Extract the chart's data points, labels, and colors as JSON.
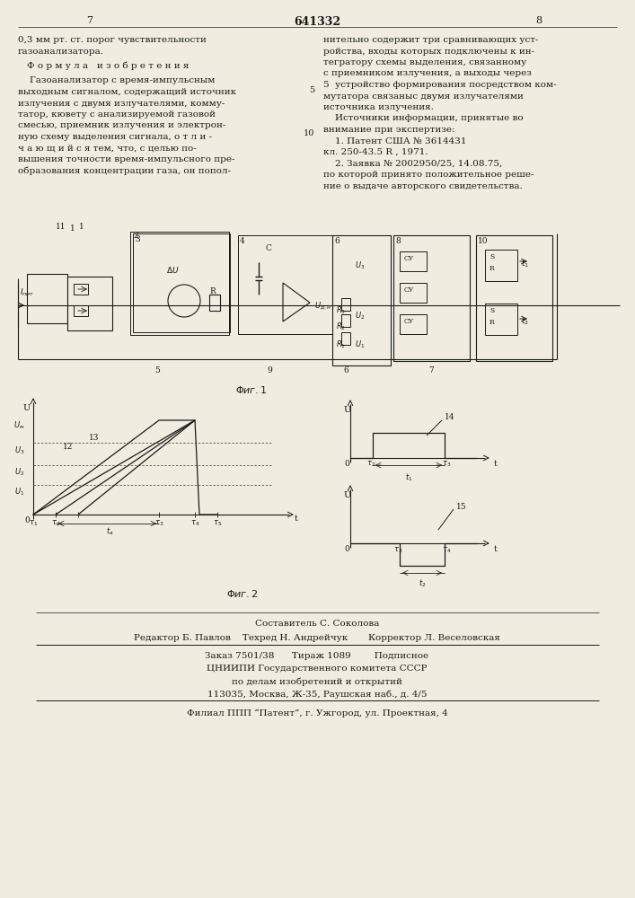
{
  "title_patent": "641332",
  "page_left": "7",
  "page_right": "8",
  "bg_color": "#f0ede0",
  "text_color": "#1a1a1a",
  "left_col_lines": [
    "0,3 мм рт. ст. порог чувствительности",
    "газоанализатора.",
    "",
    "Ф о р м у л а   и з о б р е т е н и я",
    "",
    "    Газоанализатор с время-импульсным",
    "выходным сигналом, содержащий источник",
    "излучения с двумя излучателями, комму-",
    "татор, кювету с анализируемой газовой",
    "смесью, приемник излучения и электрон-",
    "ную схему выделения сигнала, о т л и -",
    "ч а ю щ и й с я тем, что, с целью по-",
    "вышения точности время-импульсного пре-",
    "образования концентрации газа, он попол-"
  ],
  "right_col_lines": [
    "нительно содержит три сравнивающих уст-",
    "ройства, входы которых подключены к ин-",
    "тегратору схемы выделения, связанному",
    "с приемником излучения, а выходы через",
    "5  устройство формирования посредством ком-",
    "мутатора связаныс двумя излучателями",
    "источника излучения.",
    "    Источники информации, принятые во",
    "внимание при экспертизе:",
    "    1. Патент США № 3614431",
    "кл. 250-43.5 R , 1971.",
    "    2. Заявка № 2002950/25, 14.08.75,",
    "по которой принято положительное реше-",
    "ние о выдаче авторского свидетельства."
  ],
  "footer_lines": [
    "Составитель С. Соколова",
    "Редактор Б. Павлов    Техред Н. Андрейчук       Корректор Л. Веселовская",
    "Заказ 7501/38      Тираж 1089        Подписное",
    "ЦНИИПИ Государственного комитета СССР",
    "по делам изобретений и открытий",
    "113035, Москва, Ж-35, Раушская наб., д. 4/5",
    "Филиал ППП “Патент”, г. Ужгород, ул. Проектная, 4"
  ]
}
